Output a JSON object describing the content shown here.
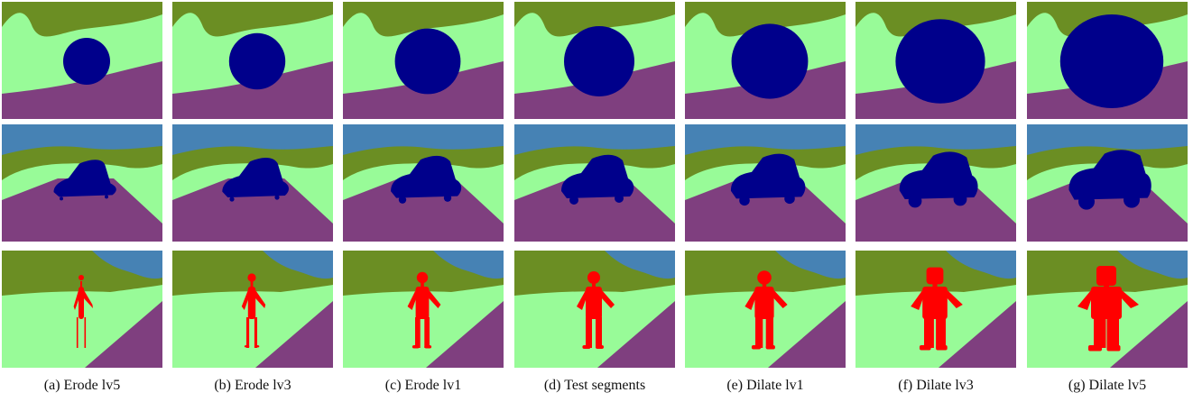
{
  "colors": {
    "sky": "#4682b4",
    "grass_dark": "#6b8e23",
    "grass_light": "#98fb98",
    "road": "#7f3f7f",
    "object_blue": "#00008b",
    "person_red": "#ff0000"
  },
  "rows": [
    {
      "name": "sphere-row",
      "object": "sphere"
    },
    {
      "name": "car-row",
      "object": "car"
    },
    {
      "name": "person-row",
      "object": "person"
    }
  ],
  "columns": [
    {
      "key": "a",
      "caption": "(a)  Erode lv5",
      "level": -5
    },
    {
      "key": "b",
      "caption": "(b)  Erode lv3",
      "level": -3
    },
    {
      "key": "c",
      "caption": "(c)  Erode lv1",
      "level": -1
    },
    {
      "key": "d",
      "caption": "(d)  Test segments",
      "level": 0
    },
    {
      "key": "e",
      "caption": "(e)  Dilate lv1",
      "level": 1
    },
    {
      "key": "f",
      "caption": "(f)  Dilate lv3",
      "level": 3
    },
    {
      "key": "g",
      "caption": "(g)  Dilate lv5",
      "level": 5
    }
  ]
}
